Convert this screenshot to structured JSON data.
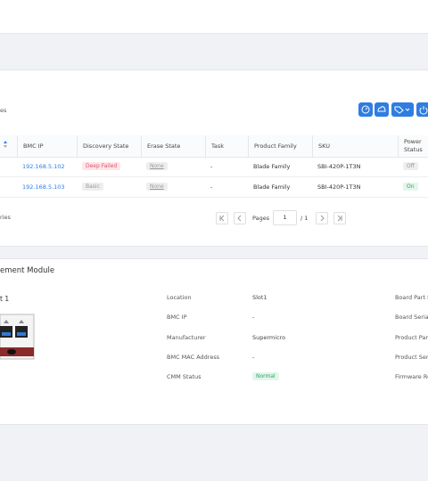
{
  "list": {
    "caption": "es",
    "columns": [
      "BMC IP",
      "Discovery State",
      "Erase State",
      "Task",
      "Product Family",
      "SKU",
      "Power Status"
    ],
    "rows": [
      [
        "192.168.5.102",
        "Deep Failed",
        "None",
        "-",
        "Blade Family",
        "SBI-420P-1T3N",
        "Off"
      ],
      [
        "192.168.5.103",
        "Basic",
        "None",
        "-",
        "Blade Family",
        "SBI-420P-1T3N",
        "On"
      ]
    ],
    "footer": "ries",
    "pagination": {
      "label": "Pages",
      "page": "1",
      "total": "/ 1"
    }
  },
  "module": {
    "title": "ement Module",
    "slot": "t 1",
    "details": [
      {
        "label": "Location",
        "value": "Slot1"
      },
      {
        "label": "BMC IP",
        "value": "-"
      },
      {
        "label": "Manufacturer",
        "value": "Supermicro"
      },
      {
        "label": "BMC MAC Address",
        "value": "-"
      },
      {
        "label": "CMM Status",
        "value": "Normal"
      }
    ],
    "more": [
      "Board Part N",
      "Board Serial",
      "Product Part",
      "Product Seri",
      "Firmware Re"
    ]
  }
}
